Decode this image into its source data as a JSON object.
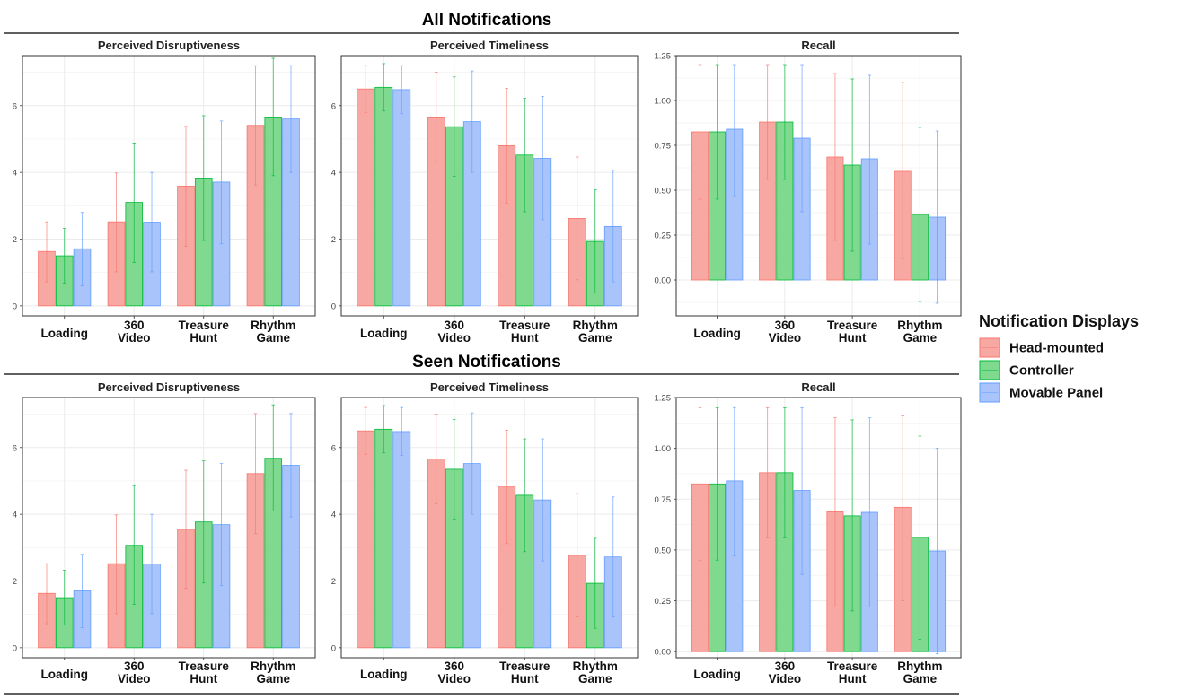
{
  "legend": {
    "title": "Notification Displays",
    "items": [
      {
        "name": "Head-mounted",
        "fill": "#F8A8A2",
        "stroke": "#F8766D"
      },
      {
        "name": "Controller",
        "fill": "#7FD98E",
        "stroke": "#00BA38"
      },
      {
        "name": "Movable Panel",
        "fill": "#A9C4FA",
        "stroke": "#619CFF"
      }
    ]
  },
  "chart_data": [
    {
      "section": "All Notifications",
      "panels": [
        {
          "type": "bar",
          "title": "Perceived Disruptiveness",
          "categories": [
            "Loading",
            "360\nVideo",
            "Treasure\nHunt",
            "Rhythm\nGame"
          ],
          "ylim": [
            -0.3,
            7.5
          ],
          "yticks": [
            0,
            2,
            4,
            6
          ],
          "ytick_labels": [
            "0",
            "2",
            "4",
            "6"
          ],
          "series": [
            {
              "name": "Head-mounted",
              "values": [
                1.63,
                2.52,
                3.59,
                5.41
              ],
              "err_low": [
                0.72,
                1.02,
                1.78,
                3.62
              ],
              "err_high": [
                2.52,
                3.98,
                5.38,
                7.2
              ]
            },
            {
              "name": "Controller",
              "values": [
                1.5,
                3.1,
                3.83,
                5.66
              ],
              "err_low": [
                0.68,
                1.3,
                1.96,
                3.9
              ],
              "err_high": [
                2.32,
                4.88,
                5.7,
                7.42
              ]
            },
            {
              "name": "Movable Panel",
              "values": [
                1.71,
                2.51,
                3.71,
                5.6
              ],
              "err_low": [
                0.6,
                1.02,
                1.86,
                4.0
              ],
              "err_high": [
                2.8,
                4.0,
                5.54,
                7.2
              ]
            }
          ]
        },
        {
          "type": "bar",
          "title": "Perceived Timeliness",
          "categories": [
            "Loading",
            "360\nVideo",
            "Treasure\nHunt",
            "Rhythm\nGame"
          ],
          "ylim": [
            -0.3,
            7.5
          ],
          "yticks": [
            0,
            2,
            4,
            6
          ],
          "ytick_labels": [
            "0",
            "2",
            "4",
            "6"
          ],
          "series": [
            {
              "name": "Head-mounted",
              "values": [
                6.5,
                5.66,
                4.8,
                2.62
              ],
              "err_low": [
                5.8,
                4.32,
                3.08,
                0.78
              ],
              "err_high": [
                7.2,
                7.0,
                6.52,
                4.46
              ]
            },
            {
              "name": "Controller",
              "values": [
                6.55,
                5.37,
                4.52,
                1.93
              ],
              "err_low": [
                5.84,
                3.88,
                2.82,
                0.38
              ],
              "err_high": [
                7.26,
                6.86,
                6.22,
                3.48
              ]
            },
            {
              "name": "Movable Panel",
              "values": [
                6.48,
                5.52,
                4.42,
                2.38
              ],
              "err_low": [
                5.76,
                4.0,
                2.58,
                0.72
              ],
              "err_high": [
                7.2,
                7.04,
                6.28,
                4.06
              ]
            }
          ]
        },
        {
          "type": "bar",
          "title": "Recall",
          "categories": [
            "Loading",
            "360\nVideo",
            "Treasure\nHunt",
            "Rhythm\nGame"
          ],
          "ylim": [
            -0.2,
            1.25
          ],
          "yticks": [
            0,
            0.25,
            0.5,
            0.75,
            1.0,
            1.25
          ],
          "ytick_labels": [
            "0.00",
            "0.25",
            "0.50",
            "0.75",
            "1.00",
            "1.25"
          ],
          "series": [
            {
              "name": "Head-mounted",
              "values": [
                0.825,
                0.88,
                0.685,
                0.605
              ],
              "err_low": [
                0.45,
                0.56,
                0.22,
                0.12
              ],
              "err_high": [
                1.2,
                1.2,
                1.15,
                1.1
              ]
            },
            {
              "name": "Controller",
              "values": [
                0.825,
                0.88,
                0.64,
                0.365
              ],
              "err_low": [
                0.45,
                0.56,
                0.16,
                -0.12
              ],
              "err_high": [
                1.2,
                1.2,
                1.12,
                0.85
              ]
            },
            {
              "name": "Movable Panel",
              "values": [
                0.84,
                0.79,
                0.675,
                0.35
              ],
              "err_low": [
                0.47,
                0.38,
                0.2,
                -0.13
              ],
              "err_high": [
                1.2,
                1.2,
                1.14,
                0.83
              ]
            }
          ]
        }
      ]
    },
    {
      "section": "Seen Notifications",
      "panels": [
        {
          "type": "bar",
          "title": "Perceived Disruptiveness",
          "categories": [
            "Loading",
            "360\nVideo",
            "Treasure\nHunt",
            "Rhythm\nGame"
          ],
          "ylim": [
            -0.3,
            7.5
          ],
          "yticks": [
            0,
            2,
            4,
            6
          ],
          "ytick_labels": [
            "0",
            "2",
            "4",
            "6"
          ],
          "series": [
            {
              "name": "Head-mounted",
              "values": [
                1.63,
                2.52,
                3.55,
                5.22
              ],
              "err_low": [
                0.72,
                1.02,
                1.78,
                3.42
              ],
              "err_high": [
                2.52,
                3.98,
                5.32,
                7.02
              ]
            },
            {
              "name": "Controller",
              "values": [
                1.5,
                3.07,
                3.77,
                5.68
              ],
              "err_low": [
                0.68,
                1.3,
                1.94,
                4.1
              ],
              "err_high": [
                2.32,
                4.86,
                5.6,
                7.28
              ]
            },
            {
              "name": "Movable Panel",
              "values": [
                1.71,
                2.51,
                3.69,
                5.47
              ],
              "err_low": [
                0.6,
                1.02,
                1.86,
                3.92
              ],
              "err_high": [
                2.8,
                4.0,
                5.52,
                7.02
              ]
            }
          ]
        },
        {
          "type": "bar",
          "title": "Perceived Timeliness",
          "categories": [
            "Loading",
            "360\nVideo",
            "Treasure\nHunt",
            "Rhythm\nGame"
          ],
          "ylim": [
            -0.3,
            7.5
          ],
          "yticks": [
            0,
            2,
            4,
            6
          ],
          "ytick_labels": [
            "0",
            "2",
            "4",
            "6"
          ],
          "series": [
            {
              "name": "Head-mounted",
              "values": [
                6.5,
                5.66,
                4.82,
                2.77
              ],
              "err_low": [
                5.8,
                4.32,
                3.12,
                0.92
              ],
              "err_high": [
                7.2,
                7.0,
                6.52,
                4.62
              ]
            },
            {
              "name": "Controller",
              "values": [
                6.55,
                5.35,
                4.57,
                1.93
              ],
              "err_low": [
                5.84,
                3.86,
                2.88,
                0.58
              ],
              "err_high": [
                7.26,
                6.84,
                6.26,
                3.28
              ]
            },
            {
              "name": "Movable Panel",
              "values": [
                6.48,
                5.52,
                4.43,
                2.72
              ],
              "err_low": [
                5.76,
                4.0,
                2.6,
                0.92
              ],
              "err_high": [
                7.2,
                7.04,
                6.26,
                4.52
              ]
            }
          ]
        },
        {
          "type": "bar",
          "title": "Recall",
          "categories": [
            "Loading",
            "360\nVideo",
            "Treasure\nHunt",
            "Rhythm\nGame"
          ],
          "ylim": [
            -0.03,
            1.25
          ],
          "yticks": [
            0,
            0.25,
            0.5,
            0.75,
            1.0,
            1.25
          ],
          "ytick_labels": [
            "0.00",
            "0.25",
            "0.50",
            "0.75",
            "1.00",
            "1.25"
          ],
          "series": [
            {
              "name": "Head-mounted",
              "values": [
                0.825,
                0.88,
                0.688,
                0.71
              ],
              "err_low": [
                0.45,
                0.56,
                0.22,
                0.25
              ],
              "err_high": [
                1.2,
                1.2,
                1.15,
                1.16
              ]
            },
            {
              "name": "Controller",
              "values": [
                0.825,
                0.88,
                0.668,
                0.562
              ],
              "err_low": [
                0.45,
                0.56,
                0.2,
                0.06
              ],
              "err_high": [
                1.2,
                1.2,
                1.14,
                1.06
              ]
            },
            {
              "name": "Movable Panel",
              "values": [
                0.84,
                0.793,
                0.685,
                0.495
              ],
              "err_low": [
                0.47,
                0.38,
                0.22,
                -0.01
              ],
              "err_high": [
                1.2,
                1.2,
                1.15,
                1.0
              ]
            }
          ]
        }
      ]
    }
  ]
}
